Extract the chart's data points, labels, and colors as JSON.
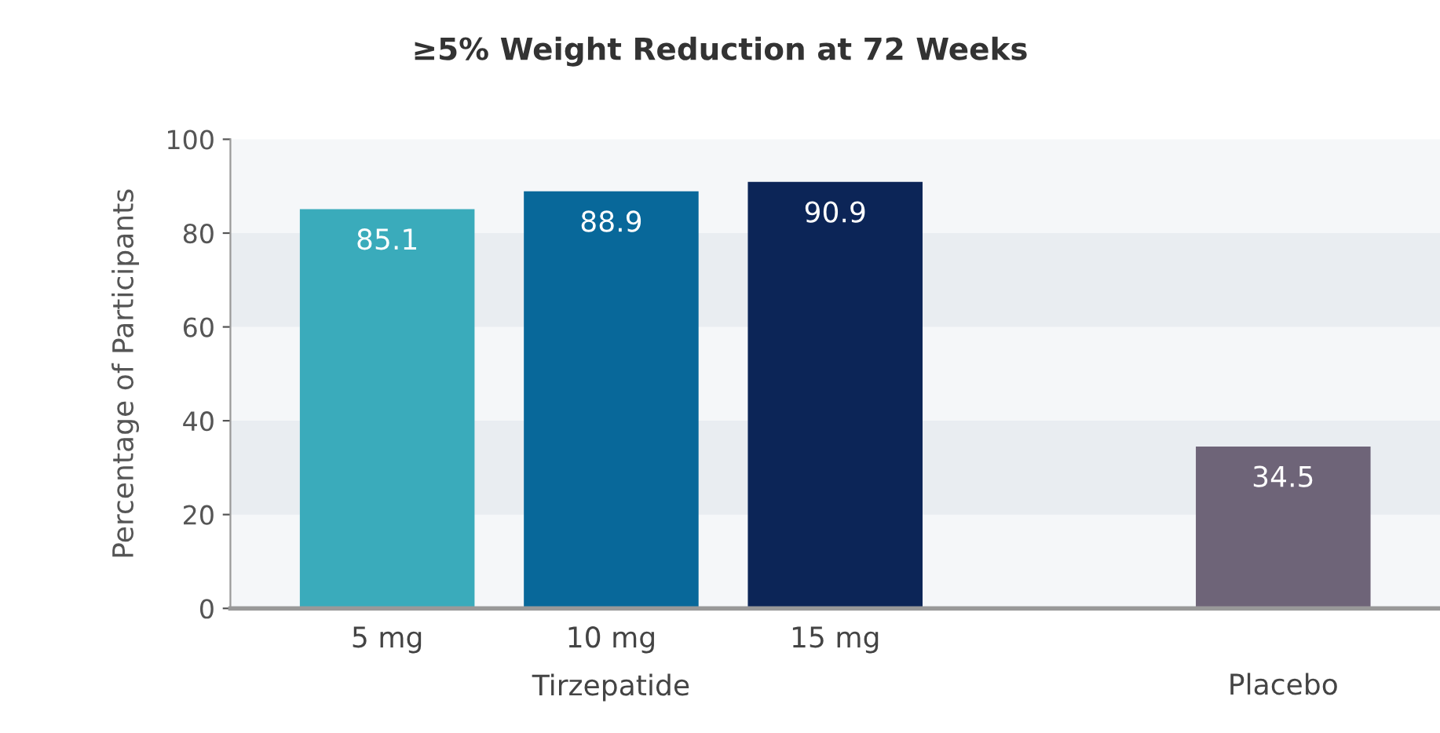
{
  "chart_data": {
    "type": "bar",
    "title": "≥5% Weight Reduction at 72 Weeks",
    "ylabel": "Percentage of Participants",
    "categories": [
      "5 mg",
      "10 mg",
      "15 mg",
      null,
      "Placebo"
    ],
    "values": [
      85.1,
      88.9,
      90.9,
      null,
      34.5
    ],
    "colors": [
      "#3aabbb",
      "#08689a",
      "#0c2557",
      "#ffffff",
      "#6e6478"
    ],
    "data_labels": true,
    "ylim": [
      0,
      100
    ],
    "yticks": [
      0,
      20,
      40,
      60,
      80,
      100
    ],
    "bands": [
      {
        "axis": "y",
        "from": 20,
        "to": 40,
        "color": "#e9edf1"
      },
      {
        "axis": "y",
        "from": 60,
        "to": 80,
        "color": "#e9edf1"
      }
    ],
    "annotations": [
      "Tirzepatide"
    ]
  }
}
